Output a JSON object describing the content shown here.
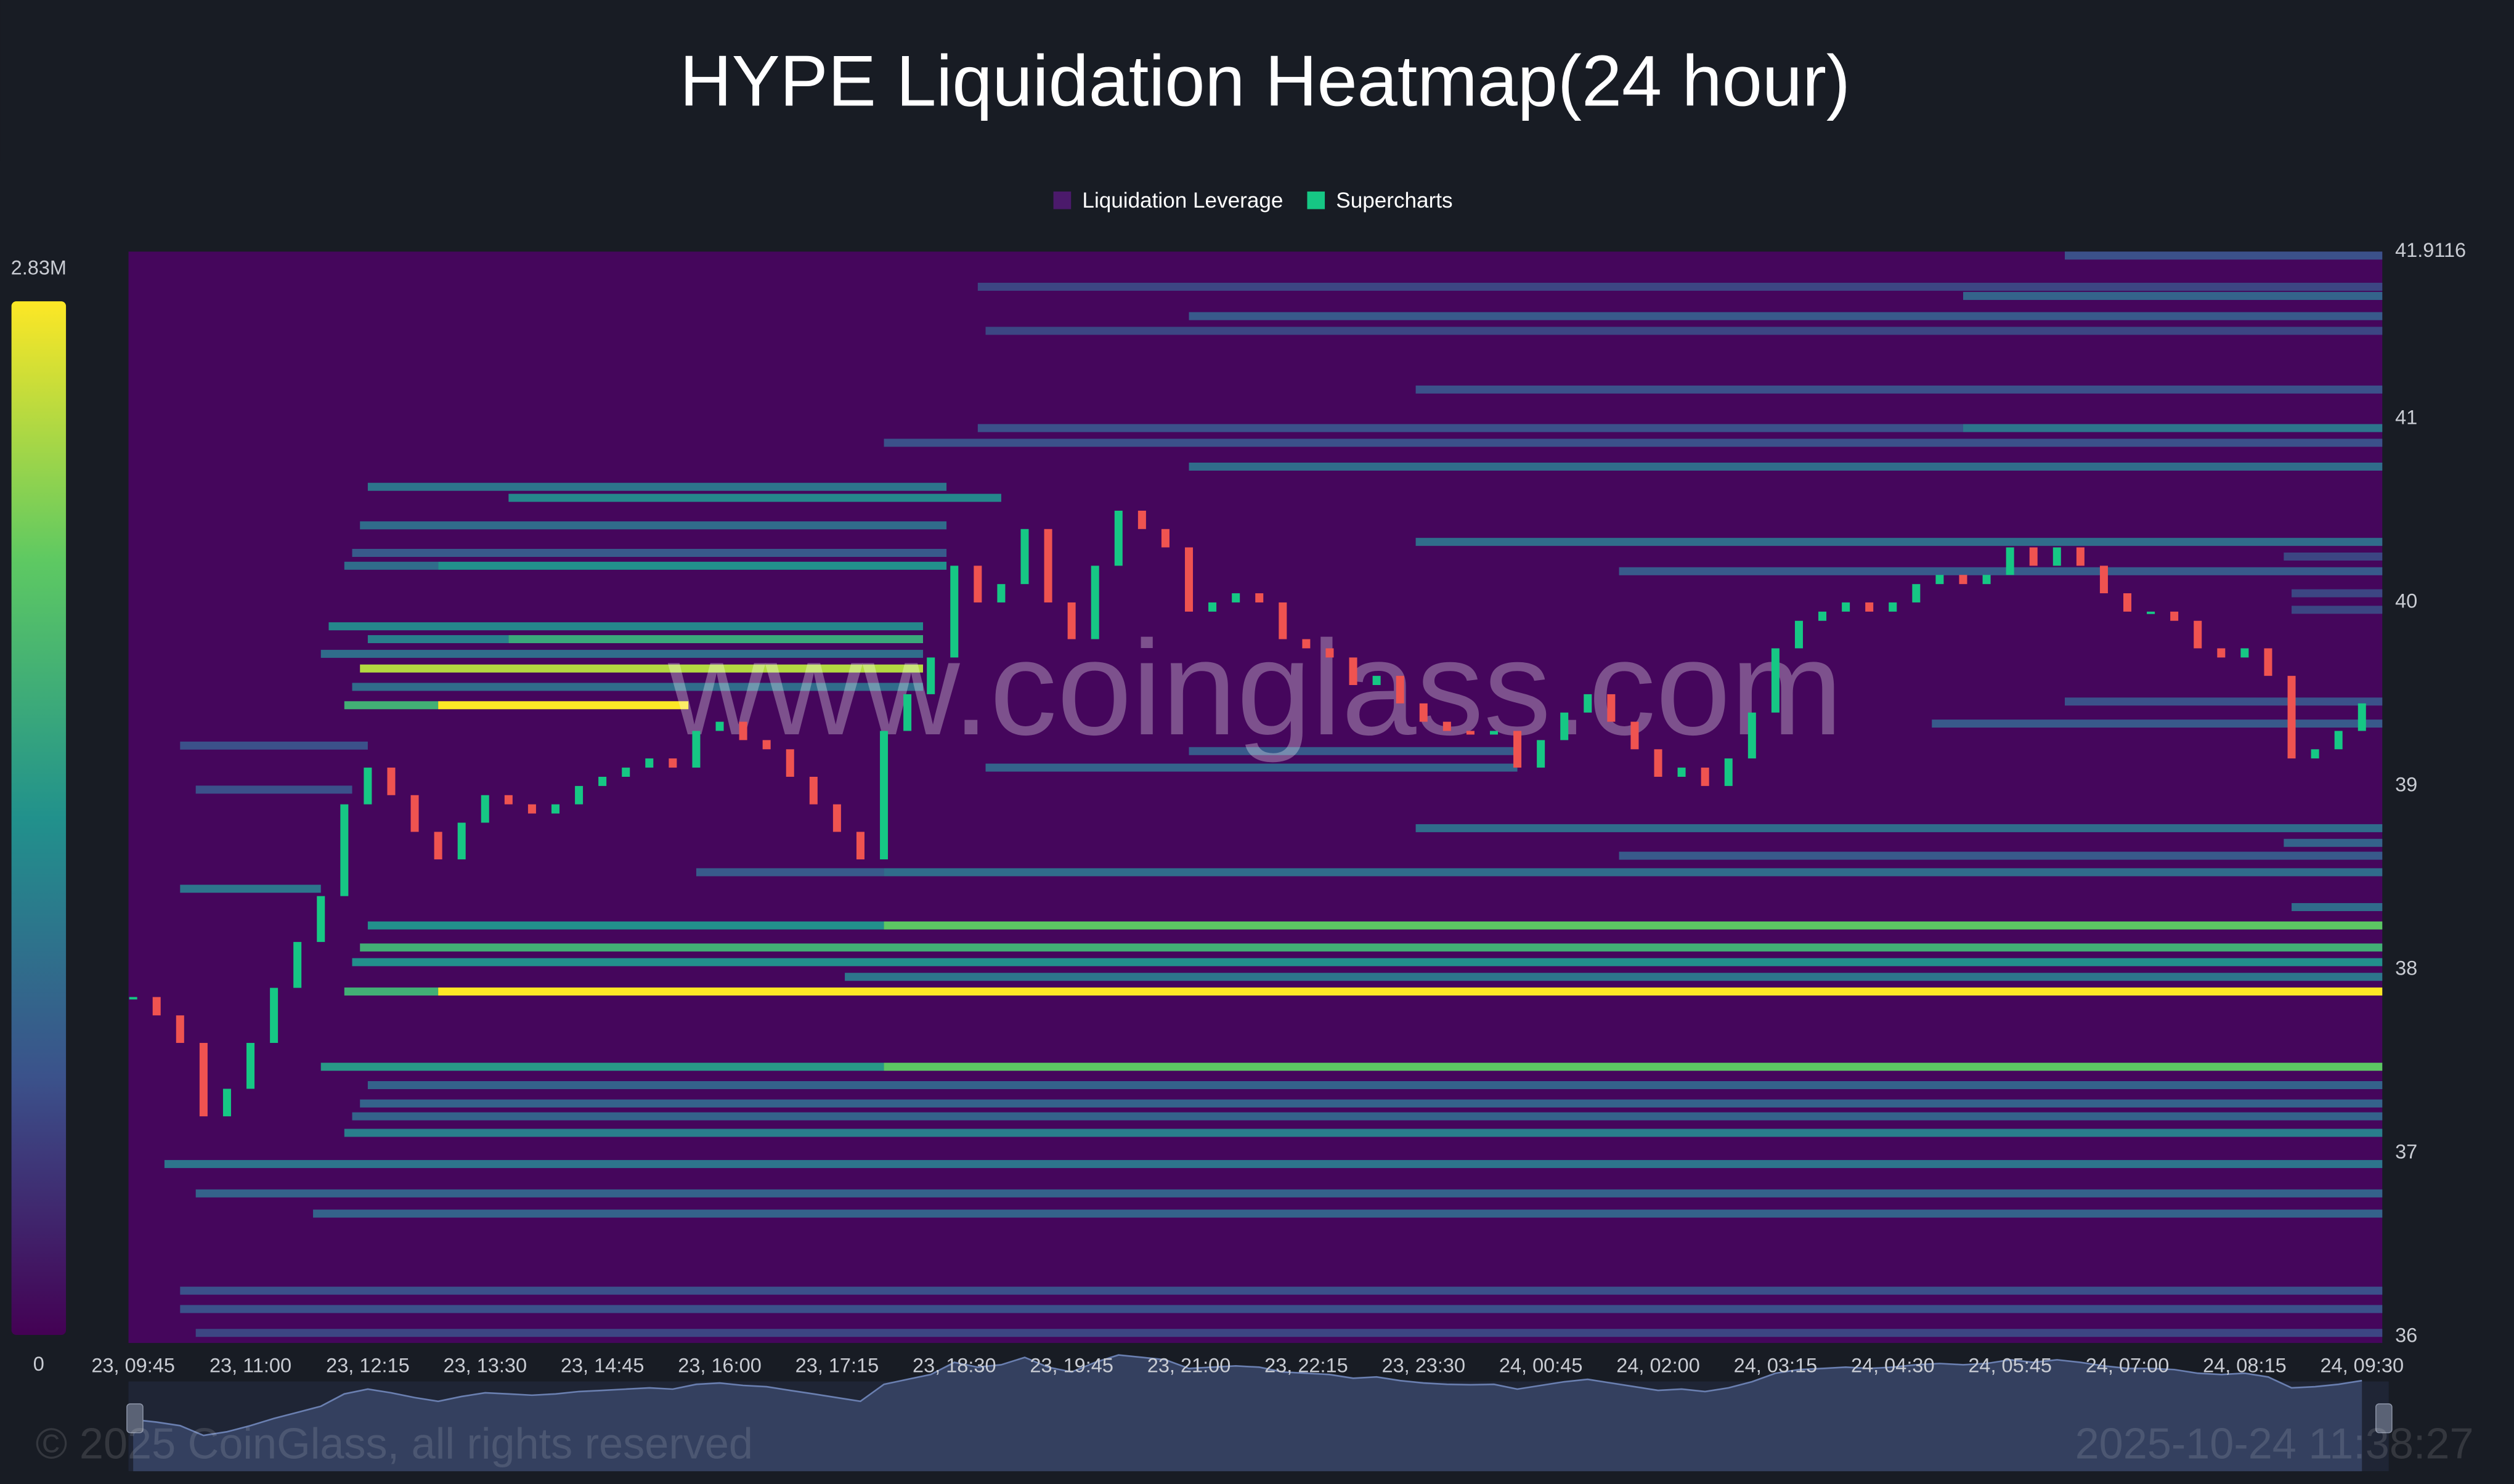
{
  "chart_data": {
    "type": "heatmap",
    "title": "HYPE Liquidation Heatmap(24 hour)",
    "watermark": "www.coinglass.com",
    "footer_left": "© 2025 CoinGlass, all rights reserved",
    "footer_right": "2025-10-24 11:38:27",
    "xlim": [
      "23, 09:42",
      "24, 09:43"
    ],
    "xticks": [
      "23, 09:45",
      "23, 11:00",
      "23, 12:15",
      "23, 13:30",
      "23, 14:45",
      "23, 16:00",
      "23, 17:15",
      "23, 18:30",
      "23, 19:45",
      "23, 21:00",
      "23, 22:15",
      "23, 23:30",
      "24, 00:45",
      "24, 02:00",
      "24, 03:15",
      "24, 04:30",
      "24, 05:45",
      "24, 07:00",
      "24, 08:15",
      "24, 09:30"
    ],
    "ylim": [
      36,
      41.9116
    ],
    "yticks": [
      36,
      37,
      38,
      39,
      40,
      41,
      41.9116
    ],
    "colorbar": {
      "lim": [
        0,
        2.83
      ],
      "ticks": [
        0,
        {
          "value": 2.83,
          "label": "2.83M"
        }
      ],
      "colors": [
        "#440154",
        "#3b528b",
        "#21918c",
        "#5ec962",
        "#fde725"
      ]
    },
    "series": [
      {
        "name": "Liquidation Leverage",
        "color": "#4b1a6b",
        "bands": [
          {
            "price": 41.89,
            "start": "24, 06:20",
            "end": "24, 09:43",
            "value": 0.7
          },
          {
            "price": 41.72,
            "start": "23, 18:45",
            "end": "24, 09:43",
            "value": 0.6
          },
          {
            "price": 41.67,
            "start": "24, 05:15",
            "end": "24, 09:43",
            "value": 0.9
          },
          {
            "price": 41.56,
            "start": "23, 21:00",
            "end": "24, 09:43",
            "value": 0.8
          },
          {
            "price": 41.48,
            "start": "23, 18:50",
            "end": "24, 09:43",
            "value": 0.6
          },
          {
            "price": 41.16,
            "start": "23, 23:25",
            "end": "24, 09:43",
            "value": 0.7
          },
          {
            "price": 40.95,
            "start": "23, 18:45",
            "end": "24, 05:15",
            "value": 0.7
          },
          {
            "price": 40.95,
            "start": "24, 05:15",
            "end": "24, 09:43",
            "value": 1.1
          },
          {
            "price": 40.87,
            "start": "23, 17:45",
            "end": "24, 09:43",
            "value": 0.7
          },
          {
            "price": 40.74,
            "start": "23, 21:00",
            "end": "24, 09:43",
            "value": 1.0
          },
          {
            "price": 40.63,
            "start": "23, 12:15",
            "end": "23, 18:25",
            "value": 1.1
          },
          {
            "price": 40.57,
            "start": "23, 13:45",
            "end": "23, 19:00",
            "value": 1.3
          },
          {
            "price": 40.42,
            "start": "23, 12:10",
            "end": "23, 18:25",
            "value": 1.0
          },
          {
            "price": 40.33,
            "start": "23, 23:25",
            "end": "24, 09:43",
            "value": 1.0
          },
          {
            "price": 40.27,
            "start": "23, 12:05",
            "end": "23, 18:25",
            "value": 0.8
          },
          {
            "price": 40.25,
            "start": "24, 08:40",
            "end": "24, 09:43",
            "value": 0.6
          },
          {
            "price": 40.2,
            "start": "23, 12:00",
            "end": "23, 13:00",
            "value": 1.0
          },
          {
            "price": 40.2,
            "start": "23, 13:00",
            "end": "23, 18:25",
            "value": 1.4
          },
          {
            "price": 40.17,
            "start": "24, 01:35",
            "end": "24, 09:43",
            "value": 0.8
          },
          {
            "price": 40.05,
            "start": "24, 08:45",
            "end": "24, 09:43",
            "value": 0.6
          },
          {
            "price": 39.96,
            "start": "24, 08:45",
            "end": "24, 09:43",
            "value": 0.6
          },
          {
            "price": 39.87,
            "start": "23, 11:50",
            "end": "23, 18:10",
            "value": 1.3
          },
          {
            "price": 39.8,
            "start": "23, 12:15",
            "end": "23, 13:45",
            "value": 1.2
          },
          {
            "price": 39.8,
            "start": "23, 13:45",
            "end": "23, 18:10",
            "value": 1.7
          },
          {
            "price": 39.72,
            "start": "23, 11:45",
            "end": "23, 18:10",
            "value": 1.0
          },
          {
            "price": 39.64,
            "start": "23, 12:10",
            "end": "23, 18:10",
            "value": 2.5
          },
          {
            "price": 39.54,
            "start": "23, 12:05",
            "end": "23, 18:10",
            "value": 1.0
          },
          {
            "price": 39.46,
            "start": "24, 06:20",
            "end": "24, 09:43",
            "value": 0.7
          },
          {
            "price": 39.44,
            "start": "23, 12:00",
            "end": "23, 13:00",
            "value": 1.8
          },
          {
            "price": 39.44,
            "start": "23, 13:00",
            "end": "23, 15:40",
            "value": 2.83
          },
          {
            "price": 39.34,
            "start": "24, 04:55",
            "end": "24, 09:43",
            "value": 0.8
          },
          {
            "price": 39.22,
            "start": "23, 10:15",
            "end": "23, 12:15",
            "value": 0.7
          },
          {
            "price": 39.19,
            "start": "23, 21:00",
            "end": "24, 00:30",
            "value": 0.8
          },
          {
            "price": 39.1,
            "start": "23, 18:50",
            "end": "24, 00:30",
            "value": 0.9
          },
          {
            "price": 38.98,
            "start": "23, 10:25",
            "end": "23, 12:05",
            "value": 0.7
          },
          {
            "price": 38.77,
            "start": "23, 23:25",
            "end": "24, 09:43",
            "value": 1.0
          },
          {
            "price": 38.69,
            "start": "24, 08:40",
            "end": "24, 09:43",
            "value": 0.9
          },
          {
            "price": 38.62,
            "start": "24, 01:35",
            "end": "24, 09:43",
            "value": 0.8
          },
          {
            "price": 38.53,
            "start": "23, 15:45",
            "end": "23, 17:45",
            "value": 0.8
          },
          {
            "price": 38.53,
            "start": "23, 17:45",
            "end": "24, 09:43",
            "value": 1.0
          },
          {
            "price": 38.44,
            "start": "23, 10:15",
            "end": "23, 11:45",
            "value": 1.1
          },
          {
            "price": 38.34,
            "start": "24, 08:45",
            "end": "24, 09:43",
            "value": 1.0
          },
          {
            "price": 38.24,
            "start": "23, 12:15",
            "end": "23, 17:45",
            "value": 1.4
          },
          {
            "price": 38.24,
            "start": "23, 17:45",
            "end": "24, 09:43",
            "value": 2.1
          },
          {
            "price": 38.12,
            "start": "23, 12:10",
            "end": "24, 09:43",
            "value": 1.8
          },
          {
            "price": 38.04,
            "start": "23, 12:05",
            "end": "24, 09:43",
            "value": 1.4
          },
          {
            "price": 37.96,
            "start": "23, 17:20",
            "end": "24, 09:43",
            "value": 1.1
          },
          {
            "price": 37.88,
            "start": "23, 12:00",
            "end": "23, 13:00",
            "value": 1.8
          },
          {
            "price": 37.88,
            "start": "23, 13:00",
            "end": "24, 09:43",
            "value": 2.83
          },
          {
            "price": 37.47,
            "start": "23, 11:45",
            "end": "23, 17:45",
            "value": 1.5
          },
          {
            "price": 37.47,
            "start": "23, 17:45",
            "end": "24, 09:43",
            "value": 2.1
          },
          {
            "price": 37.37,
            "start": "23, 12:15",
            "end": "24, 09:43",
            "value": 0.9
          },
          {
            "price": 37.27,
            "start": "23, 12:10",
            "end": "24, 09:43",
            "value": 0.9
          },
          {
            "price": 37.2,
            "start": "23, 12:05",
            "end": "24, 09:43",
            "value": 0.9
          },
          {
            "price": 37.11,
            "start": "23, 12:00",
            "end": "24, 09:43",
            "value": 1.2
          },
          {
            "price": 36.94,
            "start": "23, 10:05",
            "end": "24, 09:43",
            "value": 1.1
          },
          {
            "price": 36.78,
            "start": "23, 10:25",
            "end": "24, 09:43",
            "value": 0.9
          },
          {
            "price": 36.67,
            "start": "23, 11:40",
            "end": "24, 09:43",
            "value": 0.9
          },
          {
            "price": 36.25,
            "start": "23, 10:15",
            "end": "24, 09:43",
            "value": 0.7
          },
          {
            "price": 36.15,
            "start": "23, 10:15",
            "end": "24, 09:43",
            "value": 0.7
          },
          {
            "price": 36.02,
            "start": "23, 10:25",
            "end": "24, 09:43",
            "value": 0.6
          }
        ]
      },
      {
        "name": "Supercharts",
        "color": "#16c784",
        "down_color": "#ef5350",
        "x": [
          "23, 09:45",
          "23, 10:00",
          "23, 10:15",
          "23, 10:30",
          "23, 10:45",
          "23, 11:00",
          "23, 11:15",
          "23, 11:30",
          "23, 11:45",
          "23, 12:00",
          "23, 12:15",
          "23, 12:30",
          "23, 12:45",
          "23, 13:00",
          "23, 13:15",
          "23, 13:30",
          "23, 13:45",
          "23, 14:00",
          "23, 14:15",
          "23, 14:30",
          "23, 14:45",
          "23, 15:00",
          "23, 15:15",
          "23, 15:30",
          "23, 15:45",
          "23, 16:00",
          "23, 16:15",
          "23, 16:30",
          "23, 16:45",
          "23, 17:00",
          "23, 17:15",
          "23, 17:30",
          "23, 17:45",
          "23, 18:00",
          "23, 18:15",
          "23, 18:30",
          "23, 18:45",
          "23, 19:00",
          "23, 19:15",
          "23, 19:30",
          "23, 19:45",
          "23, 20:00",
          "23, 20:15",
          "23, 20:30",
          "23, 20:45",
          "23, 21:00",
          "23, 21:15",
          "23, 21:30",
          "23, 21:45",
          "23, 22:00",
          "23, 22:15",
          "23, 22:30",
          "23, 22:45",
          "23, 23:00",
          "23, 23:15",
          "23, 23:30",
          "23, 23:45",
          "24, 00:00",
          "24, 00:15",
          "24, 00:30",
          "24, 00:45",
          "24, 01:00",
          "24, 01:15",
          "24, 01:30",
          "24, 01:45",
          "24, 02:00",
          "24, 02:15",
          "24, 02:30",
          "24, 02:45",
          "24, 03:00",
          "24, 03:15",
          "24, 03:30",
          "24, 03:45",
          "24, 04:00",
          "24, 04:15",
          "24, 04:30",
          "24, 04:45",
          "24, 05:00",
          "24, 05:15",
          "24, 05:30",
          "24, 05:45",
          "24, 06:00",
          "24, 06:15",
          "24, 06:30",
          "24, 06:45",
          "24, 07:00",
          "24, 07:15",
          "24, 07:30",
          "24, 07:45",
          "24, 08:00",
          "24, 08:15",
          "24, 08:30",
          "24, 08:45",
          "24, 09:00",
          "24, 09:15",
          "24, 09:30"
        ],
        "values": [
          37.85,
          37.75,
          37.6,
          37.2,
          37.35,
          37.6,
          37.9,
          38.15,
          38.4,
          38.9,
          39.1,
          38.95,
          38.75,
          38.6,
          38.8,
          38.95,
          38.9,
          38.85,
          38.9,
          39.0,
          39.05,
          39.1,
          39.15,
          39.1,
          39.3,
          39.35,
          39.25,
          39.2,
          39.05,
          38.9,
          38.75,
          38.6,
          39.3,
          39.5,
          39.7,
          40.2,
          40.0,
          40.1,
          40.4,
          40.0,
          39.8,
          40.2,
          40.5,
          40.4,
          40.3,
          39.95,
          40.0,
          40.05,
          40.0,
          39.8,
          39.75,
          39.7,
          39.55,
          39.6,
          39.45,
          39.35,
          39.3,
          39.28,
          39.3,
          39.1,
          39.25,
          39.4,
          39.5,
          39.35,
          39.2,
          39.05,
          39.1,
          39.0,
          39.15,
          39.4,
          39.75,
          39.9,
          39.95,
          40.0,
          39.95,
          40.0,
          40.1,
          40.15,
          40.1,
          40.15,
          40.3,
          40.2,
          40.3,
          40.2,
          40.05,
          39.95,
          39.95,
          39.9,
          39.75,
          39.7,
          39.75,
          39.6,
          39.15,
          39.2,
          39.3,
          39.45
        ]
      }
    ]
  }
}
